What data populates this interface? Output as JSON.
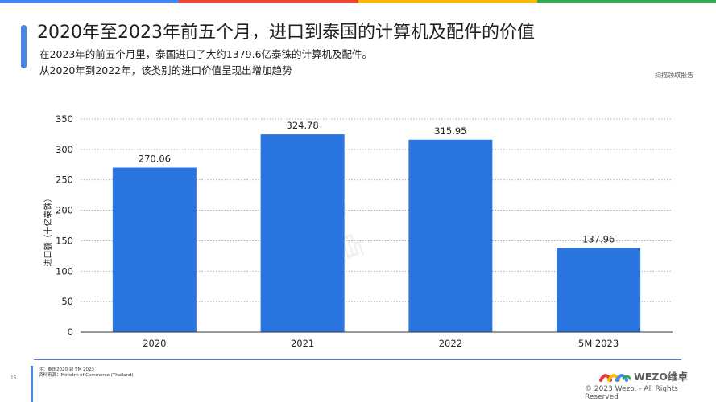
{
  "header": {
    "title": "2020年至2023年前五个月，进口到泰国的计算机及配件的价值",
    "subtitle_line1": "在2023年的前五个月里，泰国进口了大约1379.6亿泰铢的计算机及配件。",
    "subtitle_line2": "从2020年到2022年，该类别的进口价值呈现出增加趋势",
    "scan_link": "扫描领取报告"
  },
  "brand_stripe_colors": [
    "#4285f4",
    "#ea4335",
    "#fbbc05",
    "#34a853"
  ],
  "chart_data": {
    "type": "bar",
    "categories": [
      "2020",
      "2021",
      "2022",
      "5M 2023"
    ],
    "values": [
      270.06,
      324.78,
      315.95,
      137.96
    ],
    "value_labels": [
      "270.06",
      "324.78",
      "315.95",
      "137.96"
    ],
    "title": "",
    "xlabel": "",
    "ylabel": "进口额（十亿泰铢）",
    "ylim": [
      0,
      350
    ],
    "yticks": [
      0,
      50,
      100,
      150,
      200,
      250,
      300,
      350
    ],
    "grid": "horizontal dotted",
    "bar_color": "#2a75e0"
  },
  "watermark": "ZO 卓",
  "footer": {
    "page_number": "15",
    "note": "注：泰国2020 到 5M 2023",
    "source": "资料来源：Ministry of Commerce (Thailand)",
    "logo_text": "WEZO维卓",
    "copyright": "© 2023 Wezo. - All Rights Reserved"
  }
}
